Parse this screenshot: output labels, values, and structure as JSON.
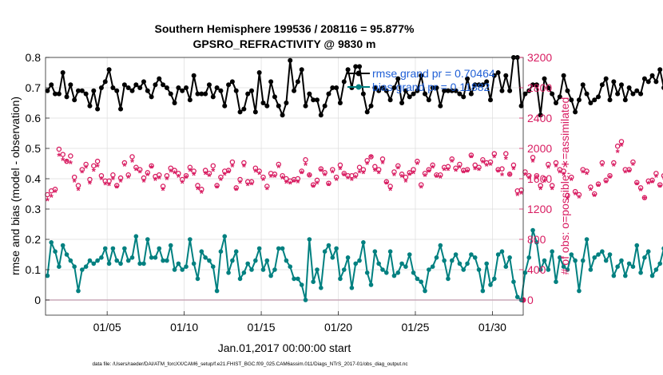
{
  "figure": {
    "title_line1": "Southern Hemisphere 199536 / 208116 = 95.877%",
    "title_line2": "GPSRO_REFRACTIVITY @ 9830 m",
    "footnote": "data file: /Users/raeder/DAI/ATM_forcXX/CAM6_setup/f.e21.FHIST_BGC.f09_025.CAM6assim.011/Diags_NTrS_2017-01/obs_diag_output.nc"
  },
  "colors": {
    "rmse": "#000000",
    "bias": "#008080",
    "obs_count": "#d81b60",
    "legend_text": "#1f5fd6",
    "zero_line": "#c8a8b8",
    "grid": "#dddddd"
  },
  "chart_data": {
    "type": "line",
    "title": "Southern Hemisphere 199536 / 208116 = 95.877%",
    "subtitle": "GPSRO_REFRACTIVITY @ 9830 m",
    "xlabel": "Jan.01,2017 00:00:00 start",
    "ylabel_left": "rmse and bias (model - observation)",
    "ylabel_right": "# of obs: o=possible; ∗=assimilated",
    "x_tick_labels": [
      "01/05",
      "01/10",
      "01/15",
      "01/20",
      "01/25",
      "01/30"
    ],
    "x_ticks_day": [
      5,
      10,
      15,
      20,
      25,
      30
    ],
    "xlim_day": [
      1,
      32
    ],
    "ylim_left": [
      -0.05,
      0.8
    ],
    "ylim_right": [
      -200,
      3200
    ],
    "y_ticks_left": [
      "0",
      "0.1",
      "0.2",
      "0.3",
      "0.4",
      "0.5",
      "0.6",
      "0.7",
      "0.8"
    ],
    "y_ticks_right": [
      "0",
      "400",
      "800",
      "1200",
      "1600",
      "2000",
      "2400",
      "2800",
      "3200"
    ],
    "grid": true,
    "legend_position": "top-right",
    "legend": [
      {
        "label": "rmse grand pr = 0.70464",
        "series": "rmse"
      },
      {
        "label": "bias grand pr = 0.11882",
        "series": "bias"
      }
    ],
    "step_days": 0.25,
    "start_day": 1.0,
    "series": [
      {
        "name": "rmse",
        "axis": "left",
        "values": [
          0.69,
          0.71,
          0.68,
          0.68,
          0.75,
          0.67,
          0.71,
          0.66,
          0.69,
          0.69,
          0.68,
          0.64,
          0.69,
          0.63,
          0.7,
          0.72,
          0.76,
          0.7,
          0.69,
          0.63,
          0.71,
          0.7,
          0.69,
          0.71,
          0.7,
          0.72,
          0.69,
          0.67,
          0.71,
          0.73,
          0.71,
          0.7,
          0.68,
          0.65,
          0.7,
          0.69,
          0.7,
          0.66,
          0.74,
          0.68,
          0.68,
          0.68,
          0.71,
          0.67,
          0.7,
          0.69,
          0.64,
          0.71,
          0.72,
          0.69,
          0.62,
          0.63,
          0.68,
          0.69,
          0.62,
          0.75,
          0.65,
          0.64,
          0.72,
          0.67,
          0.64,
          0.61,
          0.65,
          0.79,
          0.69,
          0.72,
          0.76,
          0.64,
          0.68,
          0.66,
          0.66,
          0.61,
          0.64,
          0.68,
          0.7,
          0.7,
          0.65,
          0.72,
          0.76,
          0.7,
          0.77,
          0.77,
          0.68,
          0.62,
          0.64,
          0.7,
          0.69,
          0.7,
          0.69,
          0.66,
          0.7,
          0.73,
          0.65,
          0.69,
          0.67,
          0.68,
          0.69,
          0.74,
          0.68,
          0.66,
          0.7,
          0.7,
          0.64,
          0.69,
          0.69,
          0.69,
          0.69,
          0.68,
          0.67,
          0.73,
          0.68,
          0.71,
          0.71,
          0.71,
          0.72,
          0.66,
          0.74,
          0.75,
          0.69,
          0.74,
          0.69,
          0.8,
          0.8,
          0.64,
          0.68,
          0.69,
          0.71,
          0.71,
          0.61,
          0.73,
          0.7,
          0.68,
          0.65,
          0.67,
          0.74,
          0.69,
          0.66,
          0.62,
          0.66,
          0.71,
          0.68,
          0.65,
          0.66,
          0.67,
          0.71,
          0.73,
          0.66,
          0.72,
          0.68,
          0.71,
          0.66,
          0.7,
          0.68,
          0.69,
          0.68,
          0.73,
          0.72,
          0.74,
          0.72,
          0.76,
          0.7,
          0.7,
          0.7,
          0.7
        ]
      },
      {
        "name": "bias",
        "axis": "left",
        "values": [
          0.08,
          0.19,
          0.16,
          0.11,
          0.18,
          0.15,
          0.13,
          0.11,
          0.03,
          0.1,
          0.11,
          0.13,
          0.12,
          0.13,
          0.14,
          0.17,
          0.12,
          0.17,
          0.13,
          0.12,
          0.17,
          0.13,
          0.14,
          0.21,
          0.12,
          0.12,
          0.2,
          0.14,
          0.14,
          0.17,
          0.13,
          0.13,
          0.18,
          0.1,
          0.12,
          0.1,
          0.11,
          0.2,
          0.12,
          0.07,
          0.16,
          0.14,
          0.13,
          0.11,
          0.03,
          0.16,
          0.21,
          0.09,
          0.13,
          0.16,
          0.07,
          0.09,
          0.12,
          0.1,
          0.13,
          0.17,
          0.1,
          0.13,
          0.08,
          0.1,
          0.17,
          0.17,
          0.13,
          0.11,
          0.07,
          0.07,
          0.05,
          0.0,
          0.2,
          0.06,
          0.1,
          0.04,
          0.16,
          0.18,
          0.14,
          0.17,
          0.07,
          0.1,
          0.14,
          0.04,
          0.12,
          0.13,
          0.19,
          0.09,
          0.05,
          0.16,
          0.12,
          0.1,
          0.09,
          0.16,
          0.08,
          0.09,
          0.12,
          0.11,
          0.15,
          0.09,
          0.07,
          0.06,
          0.03,
          0.1,
          0.11,
          0.14,
          0.18,
          0.13,
          0.07,
          0.13,
          0.15,
          0.12,
          0.1,
          0.12,
          0.15,
          0.14,
          0.1,
          0.03,
          0.12,
          0.05,
          0.07,
          0.15,
          0.16,
          0.11,
          0.14,
          0.06,
          0.01,
          0.0,
          0.09,
          0.14,
          0.23,
          0.19,
          0.1,
          0.13,
          0.1,
          0.16,
          0.06,
          0.14,
          0.11,
          0.1,
          0.15,
          0.13,
          0.03,
          0.13,
          0.2,
          0.1,
          0.14,
          0.15,
          0.16,
          0.13,
          0.15,
          0.08,
          0.11,
          0.13,
          0.08,
          0.12,
          0.11,
          0.18,
          0.09,
          0.14,
          0.16,
          0.08,
          0.1,
          0.12,
          0.17,
          0.03,
          0.08,
          0.09,
          0.09
        ]
      },
      {
        "name": "obs_possible",
        "axis": "right",
        "marker": "o",
        "values": [
          1390,
          1440,
          1460,
          1990,
          1920,
          1830,
          1900,
          1620,
          1510,
          1720,
          1790,
          1590,
          1770,
          1830,
          1640,
          1570,
          1570,
          1650,
          1510,
          1610,
          1810,
          1650,
          1890,
          1750,
          1720,
          1610,
          1680,
          1770,
          1630,
          1650,
          1500,
          1640,
          1740,
          1710,
          1670,
          1590,
          1640,
          1750,
          1700,
          1510,
          1460,
          1710,
          1670,
          1770,
          1510,
          1620,
          1700,
          1710,
          1820,
          1480,
          1590,
          1810,
          1560,
          1560,
          1740,
          1700,
          1620,
          1500,
          1670,
          1660,
          1790,
          1640,
          1600,
          1570,
          1590,
          1600,
          1700,
          1850,
          1650,
          1520,
          1580,
          1730,
          1680,
          1540,
          1720,
          1620,
          1780,
          1670,
          1640,
          1640,
          1650,
          1750,
          1720,
          1840,
          1890,
          1760,
          1720,
          1860,
          1560,
          1500,
          1690,
          1770,
          1660,
          1620,
          1680,
          1720,
          1830,
          1520,
          1670,
          1720,
          1780,
          1650,
          1650,
          1750,
          1760,
          1860,
          1740,
          1790,
          1710,
          1720,
          1910,
          1780,
          1750,
          1850,
          1810,
          1820,
          1930,
          1720,
          1730,
          1930,
          1660,
          1780,
          1440,
          1450,
          1690,
          1640,
          1880,
          1640,
          1510,
          1600,
          1790,
          1510,
          1810,
          1720,
          1700,
          1380,
          1620,
          1430,
          1390,
          1720,
          1700,
          1490,
          1400,
          1530,
          1810,
          1580,
          1640,
          1810,
          2030,
          2090,
          1720,
          1720,
          1820,
          1550,
          1480,
          1350,
          1570,
          1580,
          1670,
          1520,
          1640,
          1680,
          1870,
          1630,
          1670,
          1770,
          1790
        ]
      },
      {
        "name": "obs_assimilated",
        "axis": "right",
        "marker": "*",
        "values": [
          1310,
          1360,
          1420,
          1900,
          1840,
          1820,
          1800,
          1560,
          1450,
          1680,
          1740,
          1530,
          1700,
          1760,
          1590,
          1520,
          1510,
          1590,
          1480,
          1560,
          1770,
          1610,
          1820,
          1710,
          1680,
          1560,
          1640,
          1740,
          1580,
          1600,
          1450,
          1590,
          1690,
          1670,
          1620,
          1540,
          1610,
          1700,
          1650,
          1460,
          1410,
          1660,
          1630,
          1700,
          1480,
          1580,
          1650,
          1680,
          1760,
          1450,
          1540,
          1760,
          1510,
          1520,
          1690,
          1660,
          1580,
          1460,
          1620,
          1620,
          1750,
          1600,
          1540,
          1530,
          1560,
          1550,
          1670,
          1780,
          1630,
          1490,
          1530,
          1700,
          1640,
          1510,
          1680,
          1580,
          1720,
          1640,
          1600,
          1580,
          1610,
          1680,
          1670,
          1790,
          1880,
          1700,
          1670,
          1800,
          1530,
          1450,
          1640,
          1730,
          1620,
          1560,
          1650,
          1670,
          1790,
          1480,
          1630,
          1690,
          1740,
          1620,
          1610,
          1710,
          1710,
          1820,
          1700,
          1740,
          1680,
          1690,
          1880,
          1720,
          1710,
          1810,
          1770,
          1780,
          1880,
          1690,
          1640,
          1860,
          1640,
          1720,
          1380,
          1400,
          1650,
          1600,
          1820,
          1600,
          1460,
          1560,
          1740,
          1460,
          1760,
          1680,
          1650,
          1330,
          1580,
          1390,
          1350,
          1680,
          1660,
          1450,
          1370,
          1500,
          1770,
          1550,
          1610,
          1770,
          1950,
          2030,
          1680,
          1690,
          1780,
          1520,
          1440,
          1330,
          1530,
          1550,
          1620,
          1490,
          1600,
          1640,
          1820,
          1600,
          1620,
          1750,
          1760
        ]
      }
    ]
  }
}
